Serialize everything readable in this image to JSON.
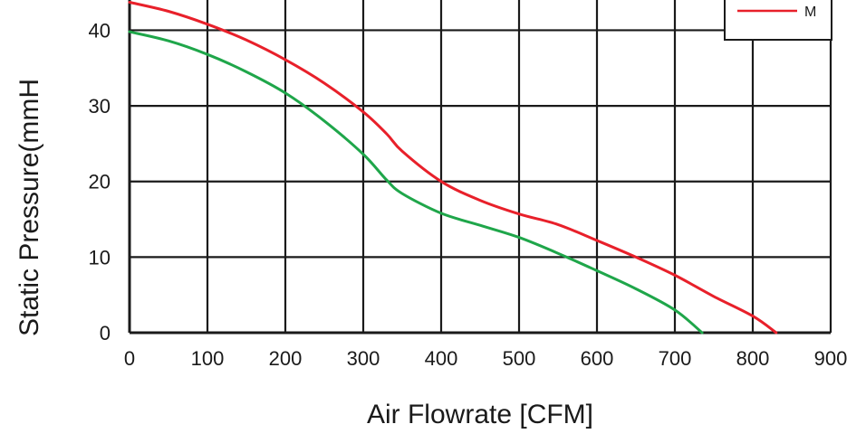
{
  "chart_data": {
    "type": "line",
    "xlabel": "Air  Flowrate   [CFM]",
    "ylabel": "Static Pressure(mmH",
    "xlim": [
      0,
      900
    ],
    "ylim": [
      0,
      44
    ],
    "x_ticks": [
      0,
      100,
      200,
      300,
      400,
      500,
      600,
      700,
      800,
      900
    ],
    "y_ticks": [
      0,
      10,
      20,
      30,
      40
    ],
    "grid": true,
    "legend_position": "top-right",
    "series": [
      {
        "name": "M",
        "color": "#e8202a",
        "points": [
          [
            0,
            43.7
          ],
          [
            50,
            42.5
          ],
          [
            100,
            40.8
          ],
          [
            150,
            38.7
          ],
          [
            200,
            36.1
          ],
          [
            250,
            33.0
          ],
          [
            300,
            29.2
          ],
          [
            330,
            26.3
          ],
          [
            350,
            24.0
          ],
          [
            400,
            20.0
          ],
          [
            450,
            17.5
          ],
          [
            500,
            15.7
          ],
          [
            550,
            14.3
          ],
          [
            600,
            12.2
          ],
          [
            650,
            10.0
          ],
          [
            700,
            7.6
          ],
          [
            750,
            4.8
          ],
          [
            800,
            2.2
          ],
          [
            830,
            0
          ]
        ]
      },
      {
        "name": "",
        "color": "#1fa64a",
        "points": [
          [
            0,
            39.8
          ],
          [
            50,
            38.6
          ],
          [
            100,
            36.8
          ],
          [
            150,
            34.5
          ],
          [
            200,
            31.7
          ],
          [
            250,
            28.0
          ],
          [
            300,
            23.6
          ],
          [
            330,
            20.2
          ],
          [
            350,
            18.4
          ],
          [
            400,
            15.8
          ],
          [
            450,
            14.2
          ],
          [
            500,
            12.6
          ],
          [
            550,
            10.5
          ],
          [
            600,
            8.2
          ],
          [
            650,
            5.8
          ],
          [
            700,
            3.0
          ],
          [
            735,
            0
          ]
        ]
      }
    ]
  }
}
